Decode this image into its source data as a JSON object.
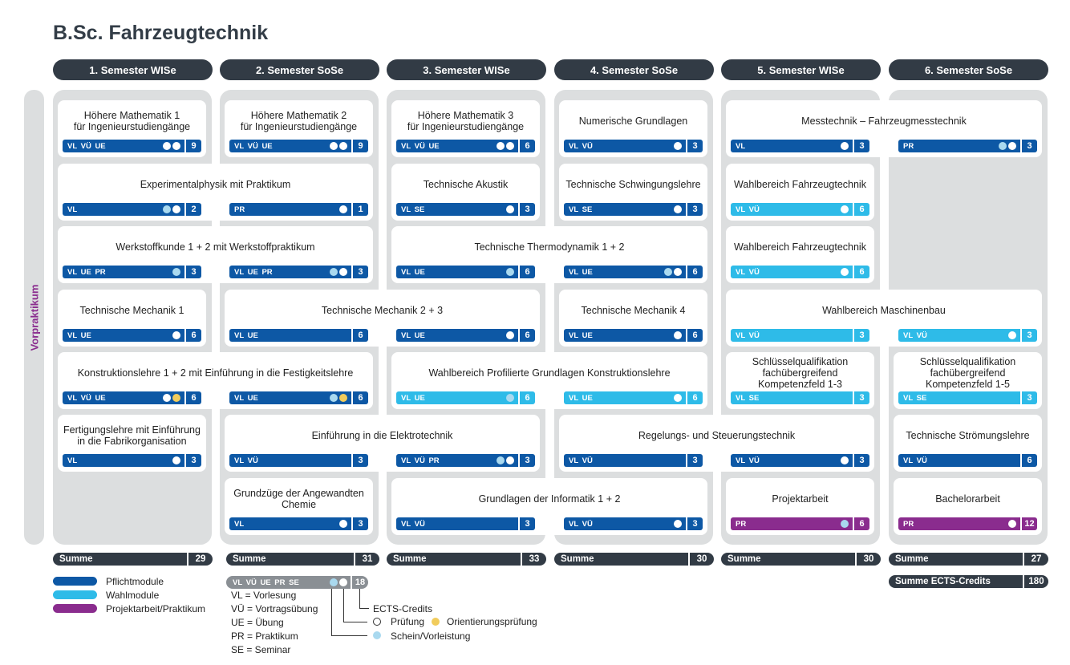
{
  "title": "B.Sc. Fahrzeugtechnik",
  "vorpraktikum": "Vorpraktikum",
  "semesters": [
    "1. Semester  WISe",
    "2. Semester  SoSe",
    "3. Semester   WISe",
    "4. Semester  SoSe",
    "5. Semester  WISe",
    "6. Semester SoSe"
  ],
  "sums": {
    "label": "Summe",
    "values": [
      "29",
      "31",
      "33",
      "30",
      "30",
      "27"
    ]
  },
  "total": {
    "label": "Summe ECTS-Credits",
    "value": "180"
  },
  "colors": {
    "pflicht": "#0d58a5",
    "wahl": "#2ebbe8",
    "projekt": "#8a2c8e",
    "header": "#323b45",
    "bg": "#dcdedf"
  },
  "modules": {
    "m1": {
      "title": "Höhere Mathematik 1\nfür Ingenieurstudiengänge",
      "bars": [
        {
          "lbl": "VL VÜ  UE",
          "ects": "9"
        }
      ]
    },
    "m2": {
      "title": "Höhere Mathematik 2\nfür Ingenieurstudiengänge",
      "bars": [
        {
          "lbl": "VL VÜ  UE",
          "ects": "9"
        }
      ]
    },
    "m3": {
      "title": "Höhere Mathematik 3\nfür Ingenieurstudiengänge",
      "bars": [
        {
          "lbl": "VL VÜ  UE",
          "ects": "6"
        }
      ]
    },
    "m4": {
      "title": "Numerische Grundlagen",
      "bars": [
        {
          "lbl": "VL VÜ",
          "ects": "3"
        }
      ]
    },
    "m5": {
      "title": "Messtechnik – Fahrzeugmesstechnik",
      "bars": [
        {
          "lbl": "VL",
          "ects": "3"
        },
        {
          "lbl": "PR",
          "ects": "3"
        }
      ]
    },
    "m6": {
      "title": "Experimentalphysik mit Praktikum",
      "bars": [
        {
          "lbl": "VL",
          "ects": "2"
        },
        {
          "lbl": "PR",
          "ects": "1"
        }
      ]
    },
    "m7": {
      "title": "Technische Akustik",
      "bars": [
        {
          "lbl": "VL SE",
          "ects": "3"
        }
      ]
    },
    "m8": {
      "title": "Technische Schwingungslehre",
      "bars": [
        {
          "lbl": "VL SE",
          "ects": "3"
        }
      ]
    },
    "m9": {
      "title": "Wahlbereich Fahrzeugtechnik",
      "bars": [
        {
          "lbl": "VL VÜ",
          "ects": "6"
        }
      ]
    },
    "m10": {
      "title": "Werkstoffkunde 1 + 2 mit Werkstoffpraktikum",
      "bars": [
        {
          "lbl": "VL UE PR",
          "ects": "3"
        },
        {
          "lbl": "VL UE PR",
          "ects": "3"
        }
      ]
    },
    "m11": {
      "title": "Technische Thermodynamik 1 + 2",
      "bars": [
        {
          "lbl": "VL UE",
          "ects": "6"
        },
        {
          "lbl": "VL UE",
          "ects": "6"
        }
      ]
    },
    "m12": {
      "title": "Wahlbereich Fahrzeugtechnik",
      "bars": [
        {
          "lbl": "VL VÜ",
          "ects": "6"
        }
      ]
    },
    "m13": {
      "title": "Technische Mechanik 1",
      "bars": [
        {
          "lbl": "VL UE",
          "ects": "6"
        }
      ]
    },
    "m14": {
      "title": "Technische Mechanik 2 + 3",
      "bars": [
        {
          "lbl": "VL UE",
          "ects": "6"
        },
        {
          "lbl": "VL UE",
          "ects": "6"
        }
      ]
    },
    "m15": {
      "title": "Technische Mechanik 4",
      "bars": [
        {
          "lbl": "VL UE",
          "ects": "6"
        }
      ]
    },
    "m16": {
      "title": "Wahlbereich Maschinenbau",
      "bars": [
        {
          "lbl": "VL VÜ",
          "ects": "3"
        },
        {
          "lbl": "VL VÜ",
          "ects": "3"
        }
      ]
    },
    "m17": {
      "title": "Konstruktionslehre 1 + 2 mit Einführung in die Festigkeitslehre",
      "bars": [
        {
          "lbl": "VL VÜ  UE",
          "ects": "6"
        },
        {
          "lbl": "VL UE",
          "ects": "6"
        }
      ]
    },
    "m18": {
      "title": "Wahlbereich Profilierte Grundlagen Konstruktionslehre",
      "bars": [
        {
          "lbl": "VL UE",
          "ects": "6"
        },
        {
          "lbl": "VL UE",
          "ects": "6"
        }
      ]
    },
    "m19": {
      "title": "Schlüsselqualifikation\nfachübergreifend\nKompetenzfeld 1-3",
      "bars": [
        {
          "lbl": "VL SE",
          "ects": "3"
        }
      ]
    },
    "m20": {
      "title": "Schlüsselqualifikation\nfachübergreifend\nKompetenzfeld 1-5",
      "bars": [
        {
          "lbl": "VL SE",
          "ects": "3"
        }
      ]
    },
    "m21": {
      "title": "Fertigungslehre mit Einführung\nin die Fabrikorganisation",
      "bars": [
        {
          "lbl": "VL",
          "ects": "3"
        }
      ]
    },
    "m22": {
      "title": "Einführung in die Elektrotechnik",
      "bars": [
        {
          "lbl": "VL VÜ",
          "ects": "3"
        },
        {
          "lbl": "VL VÜ PR",
          "ects": "3"
        }
      ]
    },
    "m23": {
      "title": "Regelungs-  und Steuerungstechnik",
      "bars": [
        {
          "lbl": "VL VÜ",
          "ects": "3"
        },
        {
          "lbl": "VL VÜ",
          "ects": "3"
        }
      ]
    },
    "m24": {
      "title": "Technische Strömungslehre",
      "bars": [
        {
          "lbl": "VL VÜ",
          "ects": "6"
        }
      ]
    },
    "m25": {
      "title": "Grundzüge der Angewandten\nChemie",
      "bars": [
        {
          "lbl": "VL",
          "ects": "3"
        }
      ]
    },
    "m26": {
      "title": "Grundlagen der Informatik 1 + 2",
      "bars": [
        {
          "lbl": "VL VÜ",
          "ects": "3"
        },
        {
          "lbl": "VL VÜ",
          "ects": "3"
        }
      ]
    },
    "m27": {
      "title": "Projektarbeit",
      "bars": [
        {
          "lbl": "PR",
          "ects": "6"
        }
      ]
    },
    "m28": {
      "title": "Bachelorarbeit",
      "bars": [
        {
          "lbl": "PR",
          "ects": "12"
        }
      ]
    }
  },
  "legend": {
    "pflicht": "Pflichtmodule",
    "wahl": "Wahlmodule",
    "projekt": "Projektarbeit/Praktikum",
    "key_label": "VL VÜ  UE  PR SE",
    "key_ects": "18",
    "abbr": [
      "VL = Vorlesung",
      "VÜ = Vortragsübung",
      "UE = Übung",
      "PR = Praktikum",
      "SE = Seminar"
    ],
    "ects_credits": "ECTS-Credits",
    "pruefung": "Prüfung",
    "orientierung": "Orientierungsprüfung",
    "schein": "Schein/Vorleistung"
  }
}
